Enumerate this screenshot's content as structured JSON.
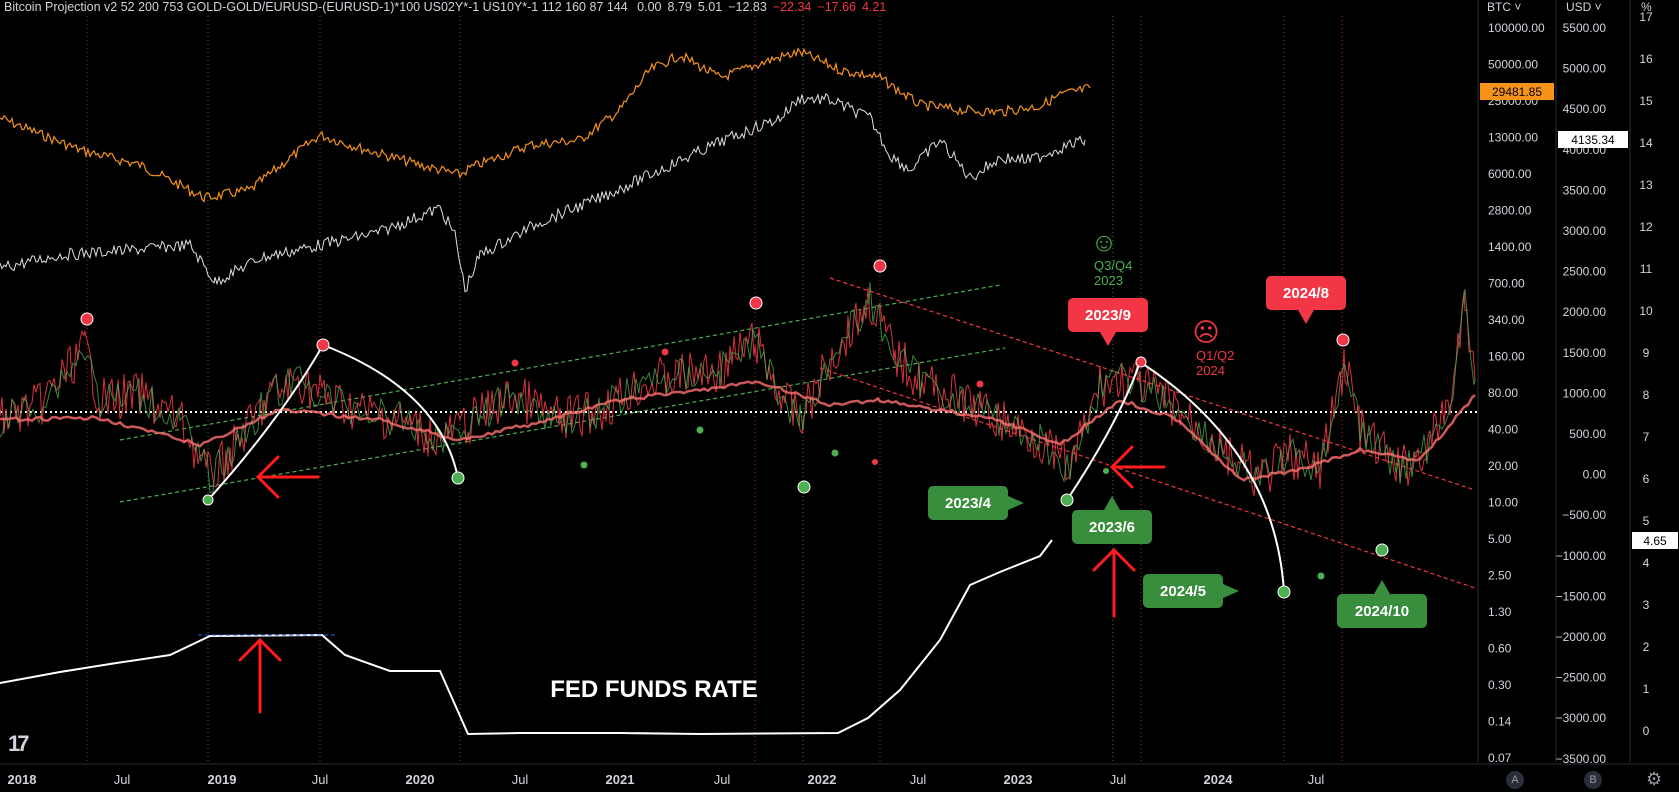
{
  "header": {
    "study": "Bitcoin Projection v2 52 200 753 GOLD-GOLD/EURUSD-(EURUSD-1)*100 US02Y*-1 US10Y*-1 112 160 87 144",
    "values": [
      {
        "text": "0.00",
        "color": "#d1d4dc"
      },
      {
        "text": "8.79",
        "color": "#d1d4dc"
      },
      {
        "text": "5.01",
        "color": "#d1d4dc"
      },
      {
        "text": "−12.83",
        "color": "#d1d4dc"
      },
      {
        "text": "−22.34",
        "color": "#f23645"
      },
      {
        "text": "−17.66",
        "color": "#f23645"
      },
      {
        "text": "4.21",
        "color": "#f23645"
      }
    ]
  },
  "scales": {
    "btc_label": "BTC ˅",
    "usd_label": "USD ˅",
    "pct_label": "%",
    "btc_ticks": [
      "100000.00",
      "50000.00",
      "25000.00",
      "13000.00",
      "6000.00",
      "2800.00",
      "1400.00",
      "700.00",
      "340.00",
      "160.00",
      "80.00",
      "40.00",
      "20.00",
      "10.00",
      "5.00",
      "2.50",
      "1.30",
      "0.60",
      "0.30",
      "0.14",
      "0.07"
    ],
    "usd_ticks": [
      "5500.00",
      "5000.00",
      "4500.00",
      "4000.00",
      "3500.00",
      "3000.00",
      "2500.00",
      "2000.00",
      "1500.00",
      "1000.00",
      "500.00",
      "0.00",
      "−500.00",
      "−1000.00",
      "−1500.00",
      "−2000.00",
      "−2500.00",
      "−3000.00",
      "−3500.00"
    ],
    "rate_ticks": [
      "17",
      "16",
      "15",
      "14",
      "13",
      "12",
      "11",
      "10",
      "9",
      "8",
      "7",
      "6",
      "5",
      "4",
      "3",
      "2",
      "1",
      "0"
    ],
    "btc_price_badge": "29481.85",
    "usd_price_badge": "4135.34",
    "rate_price_badge": "4.65"
  },
  "time_axis": [
    "2018",
    "Jul",
    "2019",
    "Jul",
    "2020",
    "Jul",
    "2021",
    "Jul",
    "2022",
    "Jul",
    "2023",
    "Jul",
    "2024",
    "Jul"
  ],
  "annotations": {
    "fed_funds": "FED FUNDS RATE",
    "q3q4": "Q3/Q4",
    "y2023": "2023",
    "q1q2": "Q1/Q2",
    "y2024": "2024",
    "happy_icon": "☺",
    "sad_icon": "☹",
    "callouts": [
      {
        "label": "2023/9",
        "kind": "top"
      },
      {
        "label": "2024/8",
        "kind": "top"
      },
      {
        "label": "2023/4",
        "kind": "bottom"
      },
      {
        "label": "2023/6",
        "kind": "bottom"
      },
      {
        "label": "2024/5",
        "kind": "bottom"
      },
      {
        "label": "2024/10",
        "kind": "bottom"
      }
    ]
  },
  "buttons": {
    "a": "A",
    "b": "B",
    "gear": "⚙"
  },
  "logo": "17",
  "chart_data": {
    "type": "line",
    "series": [
      {
        "name": "FED FUNDS RATE",
        "x": [
          "2018-01",
          "2018-07",
          "2019-01",
          "2019-07",
          "2020-01",
          "2020-04",
          "2021-01",
          "2022-01",
          "2022-03",
          "2022-07",
          "2023-01",
          "2023-05"
        ],
        "values": [
          1.3,
          2.0,
          2.4,
          2.4,
          1.6,
          0.1,
          0.1,
          0.1,
          0.3,
          2.3,
          4.3,
          5.1
        ]
      }
    ],
    "colors": {
      "gold": "#f7931a",
      "white_line": "#ffffff",
      "green": "#4caf50",
      "red": "#f23645"
    },
    "grid": false
  }
}
